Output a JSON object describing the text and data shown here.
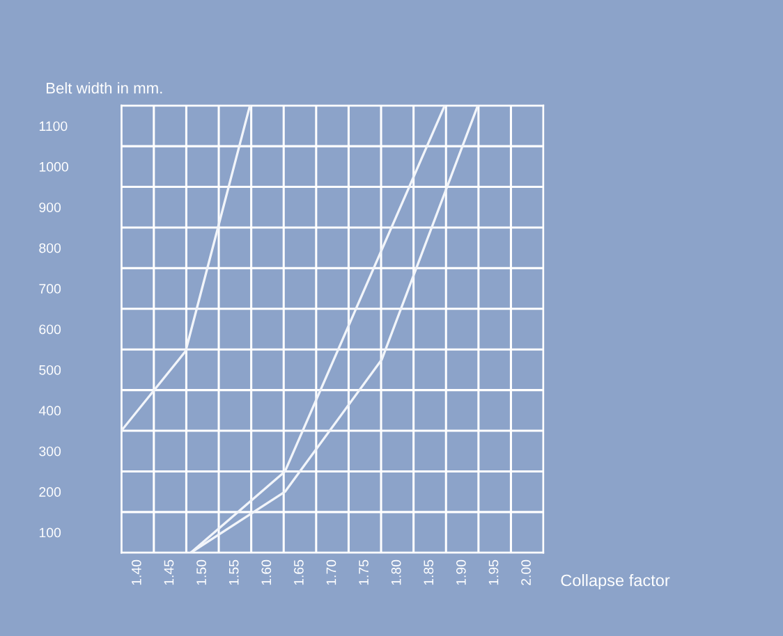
{
  "chart_data": {
    "type": "line",
    "xlabel": "Collapse factor",
    "ylabel": "Belt width in mm.",
    "series": [
      {
        "color": "#f2f5fa",
        "x": [
          1.375,
          1.474,
          1.573
        ],
        "values": [
          350,
          546,
          1150
        ]
      },
      {
        "color": "#f2f5fa",
        "x": [
          1.482,
          1.627,
          1.873
        ],
        "values": [
          50,
          250,
          1150
        ]
      },
      {
        "color": "#f2f5fa",
        "x": [
          1.482,
          1.627,
          1.776,
          1.924
        ],
        "values": [
          50,
          200,
          525,
          1150
        ]
      }
    ],
    "xlim": [
      1.375,
      2.025
    ],
    "ylim": [
      50,
      1150
    ],
    "xticks": [
      {
        "value": 1.375,
        "label": null
      },
      {
        "value": 1.4,
        "label": "1.40"
      },
      {
        "value": 1.425,
        "label": null
      },
      1.45,
      {
        "value": 1.475,
        "label": null
      },
      {
        "value": 1.5,
        "label": "1.50"
      },
      {
        "value": 1.525,
        "label": null
      },
      1.55,
      {
        "value": 1.575,
        "label": null
      },
      {
        "value": 1.6,
        "label": "1.60"
      },
      {
        "value": 1.625,
        "label": null
      },
      1.65,
      {
        "value": 1.675,
        "label": null
      },
      {
        "value": 1.7,
        "label": "1.70"
      },
      {
        "value": 1.725,
        "label": null
      },
      1.75,
      {
        "value": 1.775,
        "label": null
      },
      {
        "value": 1.8,
        "label": "1.80"
      },
      {
        "value": 1.825,
        "label": null
      },
      1.85,
      {
        "value": 1.875,
        "label": null
      },
      {
        "value": 1.9,
        "label": "1.90"
      },
      {
        "value": 1.925,
        "label": null
      },
      1.95,
      {
        "value": 1.975,
        "label": null
      },
      {
        "value": 2.0,
        "label": "2.00"
      },
      {
        "value": 2.025,
        "label": null
      }
    ],
    "yticks": [
      {
        "value": 50,
        "label": null
      },
      100,
      {
        "value": 150,
        "label": null
      },
      200,
      {
        "value": 250,
        "label": null
      },
      300,
      {
        "value": 350,
        "label": null
      },
      400,
      {
        "value": 450,
        "label": null
      },
      500,
      {
        "value": 550,
        "label": null
      },
      600,
      {
        "value": 650,
        "label": null
      },
      700,
      {
        "value": 750,
        "label": null
      },
      800,
      {
        "value": 850,
        "label": null
      },
      900,
      {
        "value": 950,
        "label": null
      },
      1000,
      {
        "value": 1050,
        "label": null
      },
      1100,
      {
        "value": 1150,
        "label": null
      }
    ],
    "grid": true,
    "marker": "none",
    "line_style": "solid"
  }
}
